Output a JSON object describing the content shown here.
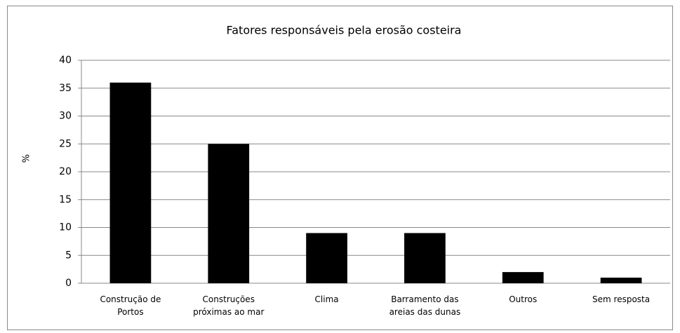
{
  "chart_data": {
    "type": "bar",
    "title": "Fatores responsáveis pela erosão costeira",
    "y_label": "%",
    "categories": [
      "Construção de Portos",
      "Construções próximas ao mar",
      "Clima",
      "Barramento das areias das dunas",
      "Outros",
      "Sem resposta"
    ],
    "values": [
      36,
      25,
      9,
      9,
      2,
      1
    ],
    "color": "#000000",
    "ylim": [
      0,
      40
    ],
    "yticks": [
      0,
      5,
      10,
      15,
      20,
      25,
      30,
      35,
      40
    ],
    "grid": true
  }
}
